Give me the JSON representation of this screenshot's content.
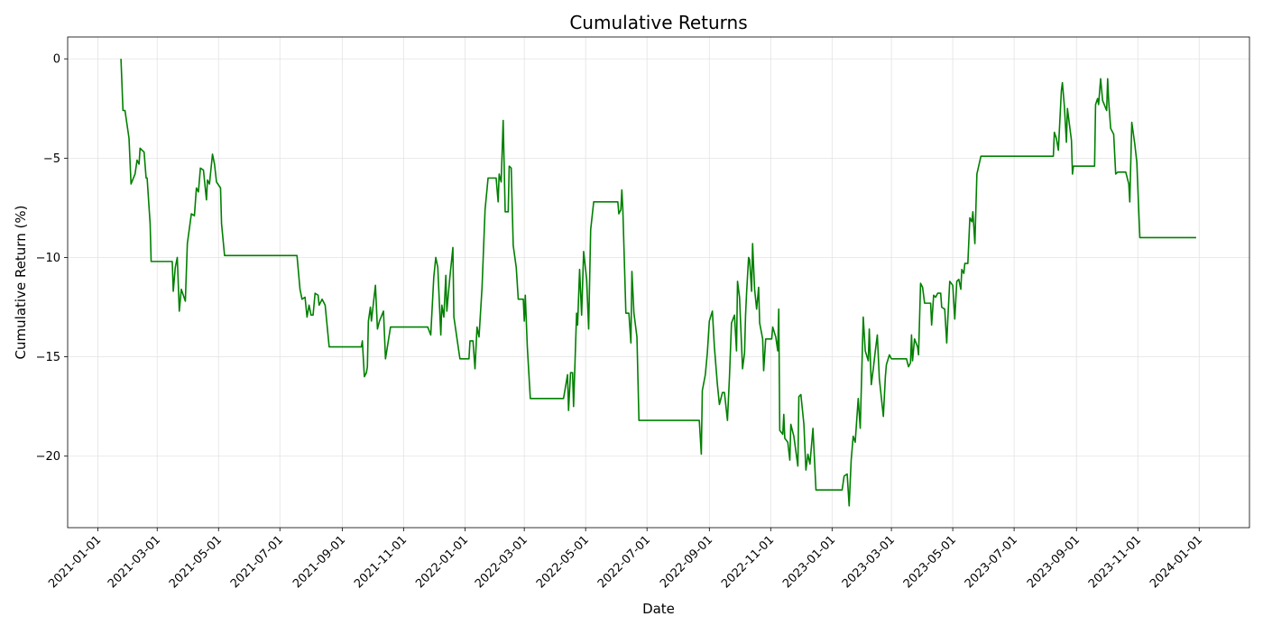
{
  "chart_data": {
    "type": "line",
    "title": "Cumulative Returns",
    "x_label": "Date",
    "y_label": "Cumulative Return (%)",
    "color": "#008000",
    "grid": true,
    "xlim": [
      "2020-12-02",
      "2024-02-20"
    ],
    "xticks": [
      "2021-01-01",
      "2021-03-01",
      "2021-05-01",
      "2021-07-01",
      "2021-09-01",
      "2021-11-01",
      "2022-01-01",
      "2022-03-01",
      "2022-05-01",
      "2022-07-01",
      "2022-09-01",
      "2022-11-01",
      "2023-01-01",
      "2023-03-01",
      "2023-05-01",
      "2023-07-01",
      "2023-09-01",
      "2023-11-01",
      "2024-01-01"
    ],
    "ylim": [
      -23.6,
      1.1
    ],
    "yticks": [
      {
        "value": -20,
        "label": "−20"
      },
      {
        "value": -15,
        "label": "−15"
      },
      {
        "value": -10,
        "label": "−10"
      },
      {
        "value": -5,
        "label": "−5"
      },
      0
    ],
    "x": [
      "2021-01-24",
      "2021-01-26",
      "2021-01-28",
      "2021-02-01",
      "2021-02-03",
      "2021-02-07",
      "2021-02-09",
      "2021-02-11",
      "2021-02-12",
      "2021-02-16",
      "2021-02-18",
      "2021-02-19",
      "2021-02-22",
      "2021-02-23",
      "2021-03-16",
      "2021-03-17",
      "2021-03-19",
      "2021-03-21",
      "2021-03-23",
      "2021-03-25",
      "2021-03-29",
      "2021-03-31",
      "2021-04-04",
      "2021-04-07",
      "2021-04-09",
      "2021-04-11",
      "2021-04-13",
      "2021-04-16",
      "2021-04-19",
      "2021-04-20",
      "2021-04-22",
      "2021-04-25",
      "2021-04-27",
      "2021-04-29",
      "2021-05-03",
      "2021-05-04",
      "2021-05-07",
      "2021-07-18",
      "2021-07-21",
      "2021-07-23",
      "2021-07-26",
      "2021-07-28",
      "2021-07-30",
      "2021-08-01",
      "2021-08-03",
      "2021-08-05",
      "2021-08-08",
      "2021-08-09",
      "2021-08-12",
      "2021-08-15",
      "2021-08-19",
      "2021-09-20",
      "2021-09-21",
      "2021-09-23",
      "2021-09-25",
      "2021-09-26",
      "2021-09-27",
      "2021-09-29",
      "2021-09-30",
      "2021-10-02",
      "2021-10-04",
      "2021-10-06",
      "2021-10-08",
      "2021-10-12",
      "2021-10-14",
      "2021-10-19",
      "2021-11-25",
      "2021-11-28",
      "2021-12-01",
      "2021-12-03",
      "2021-12-05",
      "2021-12-08",
      "2021-12-09",
      "2021-12-11",
      "2021-12-13",
      "2021-12-14",
      "2021-12-17",
      "2021-12-20",
      "2021-12-21",
      "2021-12-27",
      "2022-01-05",
      "2022-01-06",
      "2022-01-09",
      "2022-01-11",
      "2022-01-13",
      "2022-01-15",
      "2022-01-18",
      "2022-01-21",
      "2022-01-24",
      "2022-02-01",
      "2022-02-03",
      "2022-02-04",
      "2022-02-06",
      "2022-02-08",
      "2022-02-10",
      "2022-02-13",
      "2022-02-14",
      "2022-02-16",
      "2022-02-18",
      "2022-02-21",
      "2022-02-23",
      "2022-02-28",
      "2022-03-01",
      "2022-03-02",
      "2022-03-04",
      "2022-03-07",
      "2022-04-09",
      "2022-04-13",
      "2022-04-14",
      "2022-04-16",
      "2022-04-18",
      "2022-04-19",
      "2022-04-22",
      "2022-04-23",
      "2022-04-25",
      "2022-04-27",
      "2022-04-29",
      "2022-05-02",
      "2022-05-04",
      "2022-05-06",
      "2022-05-09",
      "2022-06-02",
      "2022-06-03",
      "2022-06-05",
      "2022-06-06",
      "2022-06-07",
      "2022-06-10",
      "2022-06-13",
      "2022-06-15",
      "2022-06-16",
      "2022-06-18",
      "2022-06-21",
      "2022-06-23",
      "2022-08-22",
      "2022-08-24",
      "2022-08-25",
      "2022-08-28",
      "2022-08-30",
      "2022-09-01",
      "2022-09-04",
      "2022-09-06",
      "2022-09-09",
      "2022-09-11",
      "2022-09-14",
      "2022-09-16",
      "2022-09-19",
      "2022-09-21",
      "2022-09-23",
      "2022-09-26",
      "2022-09-28",
      "2022-09-29",
      "2022-10-01",
      "2022-10-04",
      "2022-10-06",
      "2022-10-07",
      "2022-10-08",
      "2022-10-10",
      "2022-10-11",
      "2022-10-13",
      "2022-10-14",
      "2022-10-16",
      "2022-10-18",
      "2022-10-20",
      "2022-10-21",
      "2022-10-24",
      "2022-10-25",
      "2022-10-27",
      "2022-11-02",
      "2022-11-03",
      "2022-11-06",
      "2022-11-08",
      "2022-11-09",
      "2022-11-10",
      "2022-11-13",
      "2022-11-14",
      "2022-11-15",
      "2022-11-18",
      "2022-11-20",
      "2022-11-21",
      "2022-11-24",
      "2022-11-28",
      "2022-11-29",
      "2022-12-01",
      "2022-12-04",
      "2022-12-06",
      "2022-12-08",
      "2022-12-10",
      "2022-12-13",
      "2022-12-16",
      "2023-01-11",
      "2023-01-13",
      "2023-01-16",
      "2023-01-18",
      "2023-01-20",
      "2023-01-22",
      "2023-01-24",
      "2023-01-27",
      "2023-01-29",
      "2023-02-01",
      "2023-02-03",
      "2023-02-06",
      "2023-02-07",
      "2023-02-09",
      "2023-02-11",
      "2023-02-13",
      "2023-02-15",
      "2023-02-17",
      "2023-02-21",
      "2023-02-23",
      "2023-02-24",
      "2023-02-27",
      "2023-03-01",
      "2023-03-16",
      "2023-03-18",
      "2023-03-20",
      "2023-03-21",
      "2023-03-22",
      "2023-03-24",
      "2023-03-27",
      "2023-03-28",
      "2023-03-30",
      "2023-04-01",
      "2023-04-03",
      "2023-04-09",
      "2023-04-10",
      "2023-04-12",
      "2023-04-14",
      "2023-04-16",
      "2023-04-19",
      "2023-04-20",
      "2023-04-23",
      "2023-04-25",
      "2023-04-26",
      "2023-04-28",
      "2023-05-01",
      "2023-05-03",
      "2023-05-05",
      "2023-05-07",
      "2023-05-09",
      "2023-05-10",
      "2023-05-12",
      "2023-05-13",
      "2023-05-16",
      "2023-05-18",
      "2023-05-20",
      "2023-05-21",
      "2023-05-23",
      "2023-05-25",
      "2023-05-29",
      "2023-08-09",
      "2023-08-10",
      "2023-08-12",
      "2023-08-14",
      "2023-08-17",
      "2023-08-18",
      "2023-08-20",
      "2023-08-22",
      "2023-08-23",
      "2023-08-27",
      "2023-08-28",
      "2023-08-29",
      "2023-09-19",
      "2023-09-20",
      "2023-09-22",
      "2023-09-23",
      "2023-09-25",
      "2023-09-27",
      "2023-10-01",
      "2023-10-02",
      "2023-10-03",
      "2023-10-05",
      "2023-10-08",
      "2023-10-10",
      "2023-10-12",
      "2023-10-20",
      "2023-10-23",
      "2023-10-24",
      "2023-10-26",
      "2023-10-29",
      "2023-10-31",
      "2023-11-03",
      "2023-12-29"
    ],
    "values": [
      0,
      -2.6,
      -2.6,
      -4,
      -6.3,
      -5.8,
      -5.1,
      -5.3,
      -4.5,
      -4.7,
      -6,
      -6,
      -8.3,
      -10.2,
      -10.2,
      -11.7,
      -10.5,
      -10,
      -12.7,
      -11.6,
      -12.2,
      -9.3,
      -7.8,
      -7.9,
      -6.5,
      -6.7,
      -5.5,
      -5.6,
      -7.1,
      -6.1,
      -6.3,
      -4.8,
      -5.3,
      -6.2,
      -6.5,
      -8.3,
      -9.9,
      -9.9,
      -11.6,
      -12.1,
      -12,
      -13,
      -12.4,
      -12.9,
      -12.9,
      -11.8,
      -11.9,
      -12.4,
      -12.1,
      -12.4,
      -14.5,
      -14.5,
      -14.2,
      -16,
      -15.8,
      -15.5,
      -13.2,
      -12.5,
      -13.2,
      -12.3,
      -11.4,
      -13.6,
      -13.2,
      -12.7,
      -15.1,
      -13.5,
      -13.5,
      -13.9,
      -11,
      -10,
      -10.5,
      -13.9,
      -12.4,
      -13,
      -10.9,
      -12.7,
      -11,
      -9.5,
      -13,
      -15.1,
      -15.1,
      -14.2,
      -14.2,
      -15.6,
      -13.5,
      -14,
      -11.5,
      -7.6,
      -6,
      -6,
      -7.2,
      -5.8,
      -6.2,
      -3.1,
      -7.7,
      -7.7,
      -5.4,
      -5.5,
      -9.4,
      -10.5,
      -12.1,
      -12.1,
      -13.2,
      -11.9,
      -14.5,
      -17.1,
      -17.1,
      -15.9,
      -17.7,
      -15.8,
      -15.8,
      -17.5,
      -12.8,
      -13.4,
      -10.6,
      -12.9,
      -9.7,
      -11.1,
      -13.6,
      -8.6,
      -7.2,
      -7.2,
      -7.8,
      -7.6,
      -6.6,
      -7.6,
      -12.8,
      -12.8,
      -14.3,
      -10.7,
      -12.8,
      -14,
      -18.2,
      -18.2,
      -19.9,
      -16.7,
      -15.9,
      -14.8,
      -13.2,
      -12.7,
      -14.5,
      -16.4,
      -17.4,
      -16.8,
      -16.8,
      -18.2,
      -16,
      -13.3,
      -12.9,
      -14.7,
      -11.2,
      -12,
      -15.6,
      -14.8,
      -12.9,
      -11.8,
      -10,
      -10.1,
      -11.7,
      -9.3,
      -11.6,
      -12.6,
      -11.5,
      -13.3,
      -14.1,
      -15.7,
      -14.1,
      -14.1,
      -13.5,
      -14,
      -14.7,
      -12.6,
      -18.7,
      -18.9,
      -17.9,
      -19.1,
      -19.3,
      -20.2,
      -18.4,
      -19,
      -20.5,
      -17,
      -16.9,
      -18.4,
      -20.7,
      -19.9,
      -20.4,
      -18.6,
      -21.7,
      -21.7,
      -21,
      -20.9,
      -22.5,
      -20.2,
      -19,
      -19.3,
      -17.1,
      -18.6,
      -13,
      -14.7,
      -15.2,
      -13.6,
      -16.4,
      -15.6,
      -14.7,
      -13.9,
      -16.1,
      -18,
      -16,
      -15.4,
      -14.9,
      -15.1,
      -15.1,
      -15.5,
      -15.3,
      -13.9,
      -15.2,
      -14.1,
      -14.5,
      -14.9,
      -11.3,
      -11.5,
      -12.3,
      -12.3,
      -13.4,
      -11.9,
      -12,
      -11.8,
      -11.8,
      -12.5,
      -12.6,
      -14.3,
      -13.2,
      -11.2,
      -11.4,
      -13.1,
      -11.2,
      -11.1,
      -11.6,
      -10.6,
      -10.8,
      -10.3,
      -10.3,
      -8,
      -8.2,
      -7.7,
      -9.3,
      -5.8,
      -4.9,
      -4.9,
      -3.7,
      -4,
      -4.6,
      -1.6,
      -1.2,
      -2.4,
      -4.2,
      -2.5,
      -4.1,
      -5.8,
      -5.4,
      -5.4,
      -2.3,
      -2,
      -2.3,
      -1,
      -2.1,
      -2.6,
      -1,
      -2.1,
      -3.5,
      -3.8,
      -5.8,
      -5.7,
      -5.7,
      -6.3,
      -7.2,
      -3.2,
      -4.3,
      -5.2,
      -9,
      -9
    ]
  }
}
